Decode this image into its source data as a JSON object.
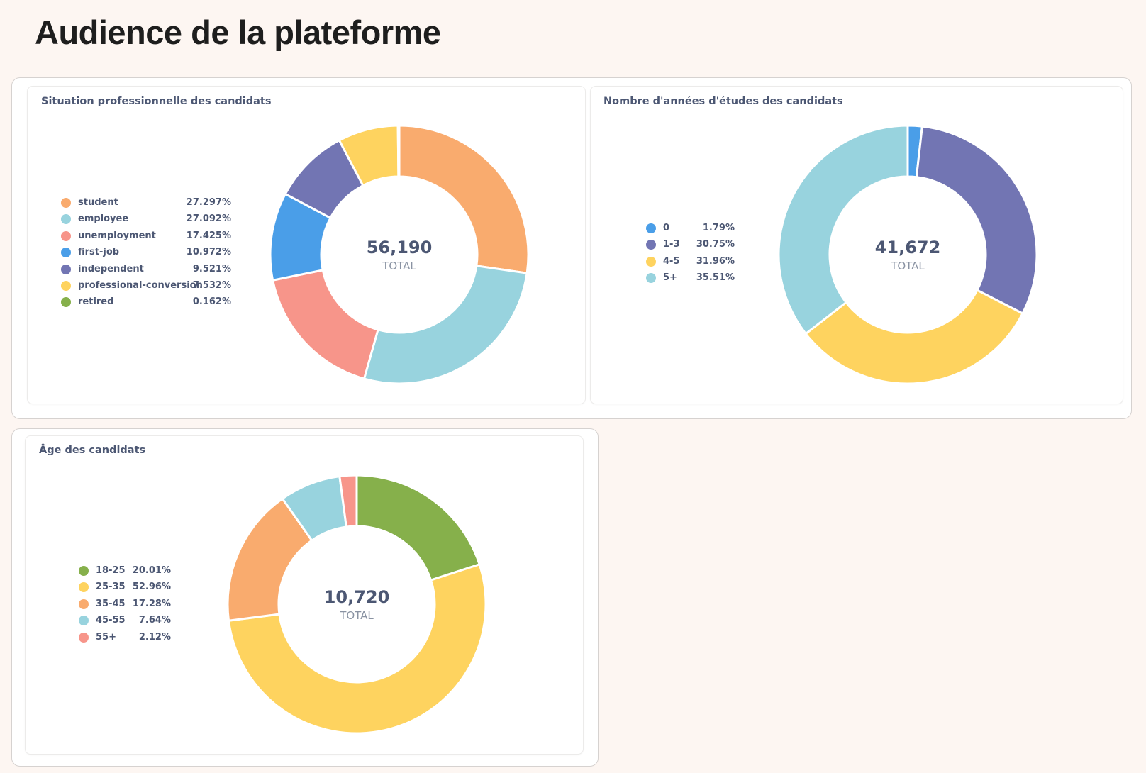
{
  "page": {
    "title": "Audience de la plateforme"
  },
  "chart_data": [
    {
      "type": "pie",
      "title": "Situation professionnelle des candidats",
      "total_value": "56,190",
      "total_label": "TOTAL",
      "categories": [
        "student",
        "employee",
        "unemployment",
        "first-job",
        "independent",
        "professional-conversion",
        "retired"
      ],
      "values": [
        27.297,
        27.092,
        17.425,
        10.972,
        9.521,
        7.532,
        0.162
      ],
      "value_labels": [
        "27.297%",
        "27.092%",
        "17.425%",
        "10.972%",
        "9.521%",
        "7.532%",
        "0.162%"
      ],
      "colors": [
        "#f9ab6e",
        "#98d3de",
        "#f7958a",
        "#4a9ee8",
        "#7275b3",
        "#fed35f",
        "#86b04b"
      ],
      "legend_position": "left"
    },
    {
      "type": "pie",
      "title": "Nombre d'années d'études des candidats",
      "total_value": "41,672",
      "total_label": "TOTAL",
      "categories": [
        "0",
        "1-3",
        "4-5",
        "5+"
      ],
      "values": [
        1.79,
        30.75,
        31.96,
        35.51
      ],
      "value_labels": [
        "1.79%",
        "30.75%",
        "31.96%",
        "35.51%"
      ],
      "colors": [
        "#4a9ee8",
        "#7275b3",
        "#fed35f",
        "#98d3de"
      ],
      "legend_position": "left"
    },
    {
      "type": "pie",
      "title": "Âge des candidats",
      "total_value": "10,720",
      "total_label": "TOTAL",
      "categories": [
        "18-25",
        "25-35",
        "35-45",
        "45-55",
        "55+"
      ],
      "values": [
        20.01,
        52.96,
        17.28,
        7.64,
        2.12
      ],
      "value_labels": [
        "20.01%",
        "52.96%",
        "17.28%",
        "7.64%",
        "2.12%"
      ],
      "colors": [
        "#86b04b",
        "#fed35f",
        "#f9ab6e",
        "#98d3de",
        "#f7958a"
      ],
      "legend_position": "left"
    }
  ]
}
